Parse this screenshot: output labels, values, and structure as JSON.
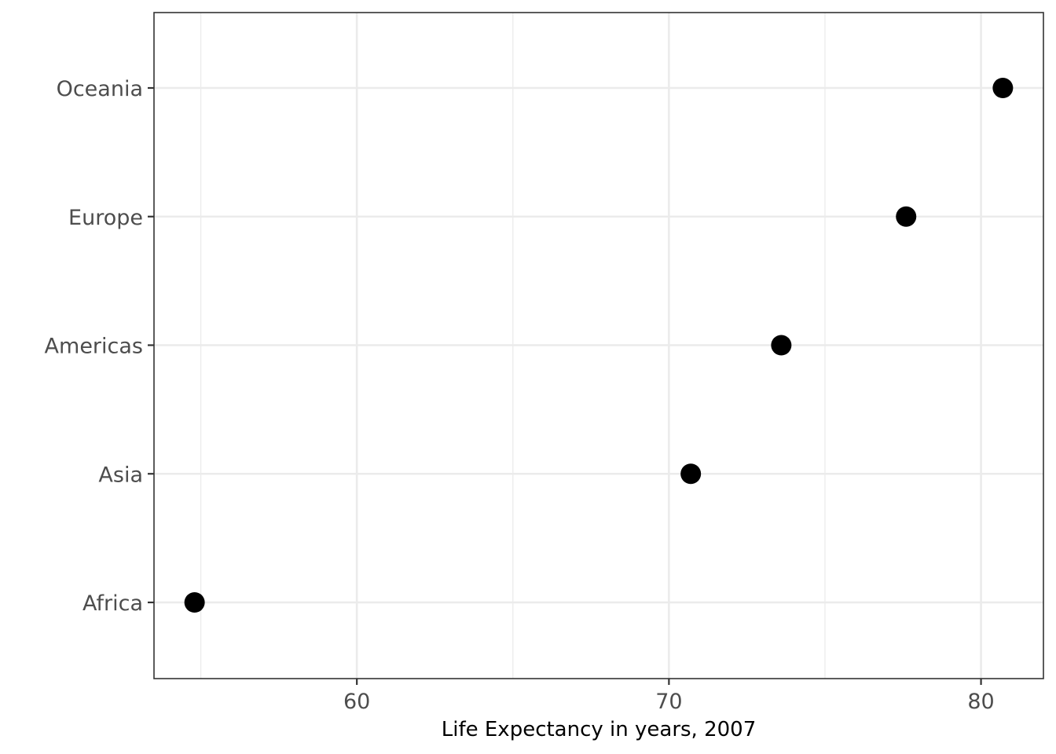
{
  "chart_data": {
    "type": "scatter",
    "title": "",
    "xlabel": "Life Expectancy in years, 2007",
    "ylabel": "",
    "categories": [
      "Africa",
      "Asia",
      "Americas",
      "Europe",
      "Oceania"
    ],
    "values": [
      54.8,
      70.7,
      73.6,
      77.6,
      80.7
    ],
    "xlim": [
      53.5,
      82.0
    ],
    "x_ticks": [
      60,
      70,
      80
    ],
    "x_tick_labels": [
      "60",
      "70",
      "80"
    ],
    "x_minor_ticks": [
      55,
      65,
      75
    ],
    "grid": true,
    "legend": "none",
    "colors": {
      "points": "#000000",
      "grid": "#ebebeb",
      "border": "#333333",
      "tick_text": "#4d4d4d"
    }
  }
}
